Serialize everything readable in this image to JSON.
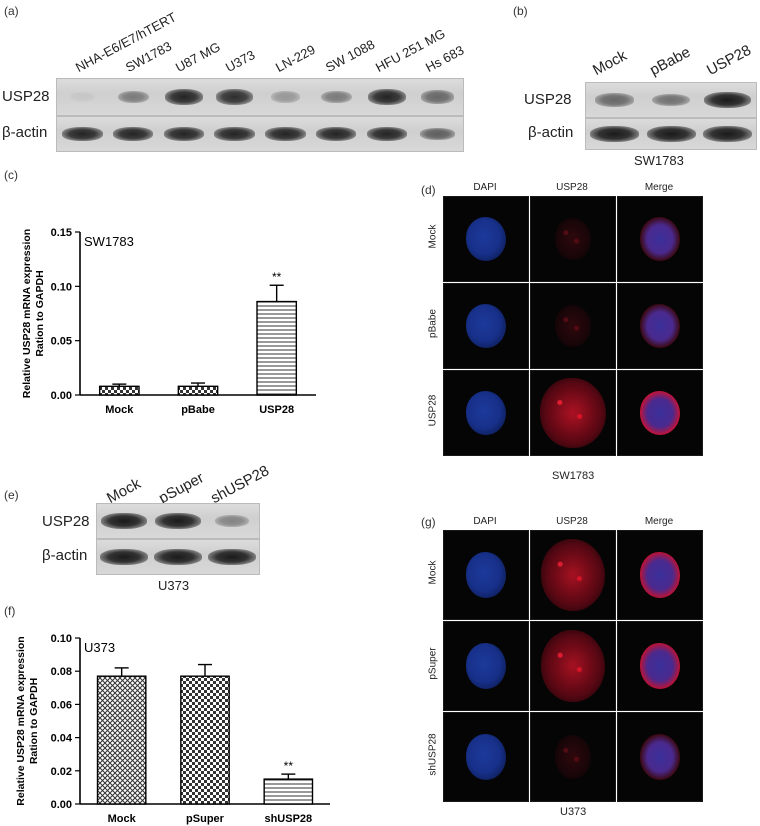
{
  "panel_labels": {
    "a": "(a)",
    "b": "(b)",
    "c": "(c)",
    "d": "(d)",
    "e": "(e)",
    "f": "(f)",
    "g": "(g)"
  },
  "panel_a": {
    "lanes": [
      "NHA-E6/E7/hTERT",
      "SW1783",
      "U87 MG",
      "U373",
      "LN-229",
      "SW 1088",
      "HFU 251 MG",
      "Hs 683"
    ],
    "rows": [
      "USP28",
      "β-actin"
    ],
    "usp28_intensity": [
      0.05,
      0.45,
      0.9,
      0.85,
      0.3,
      0.45,
      0.9,
      0.55
    ]
  },
  "panel_b": {
    "lanes": [
      "Mock",
      "pBabe",
      "USP28"
    ],
    "rows": [
      "USP28",
      "β-actin"
    ],
    "caption": "SW1783",
    "usp28_intensity": [
      0.55,
      0.5,
      0.95
    ]
  },
  "panel_e": {
    "lanes": [
      "Mock",
      "pSuper",
      "shUSP28"
    ],
    "rows": [
      "USP28",
      "β-actin"
    ],
    "caption": "U373",
    "usp28_intensity": [
      0.95,
      0.95,
      0.4
    ]
  },
  "panel_d": {
    "columns": [
      "DAPI",
      "USP28",
      "Merge"
    ],
    "rows": [
      "Mock",
      "pBabe",
      "USP28"
    ],
    "caption": "SW1783",
    "usp28_signal": [
      0.1,
      0.1,
      0.95
    ]
  },
  "panel_g": {
    "columns": [
      "DAPI",
      "USP28",
      "Merge"
    ],
    "rows": [
      "Mock",
      "pSuper",
      "shUSP28"
    ],
    "caption": "U373",
    "usp28_signal": [
      0.9,
      0.9,
      0.1
    ]
  },
  "chart_data": [
    {
      "type": "bar",
      "panel": "c",
      "annotation": "SW1783",
      "categories": [
        "Mock",
        "pBabe",
        "USP28"
      ],
      "values": [
        0.008,
        0.008,
        0.086
      ],
      "errors": [
        0.002,
        0.003,
        0.015
      ],
      "significance": [
        "",
        "",
        "**"
      ],
      "ylabel": "Relative USP28 mRNA expression\nRation to GAPDH",
      "ylim": [
        0,
        0.15
      ],
      "yticks": [
        "0.00",
        "0.05",
        "0.10",
        "0.15"
      ]
    },
    {
      "type": "bar",
      "panel": "f",
      "annotation": "U373",
      "categories": [
        "Mock",
        "pSuper",
        "shUSP28"
      ],
      "values": [
        0.077,
        0.077,
        0.015
      ],
      "errors": [
        0.005,
        0.007,
        0.003
      ],
      "significance": [
        "",
        "",
        "**"
      ],
      "ylabel": "Relative USP28 mRNA expression\nRation to GAPDH",
      "ylim": [
        0,
        0.1
      ],
      "yticks": [
        "0.00",
        "0.02",
        "0.04",
        "0.06",
        "0.08",
        "0.10"
      ]
    }
  ]
}
